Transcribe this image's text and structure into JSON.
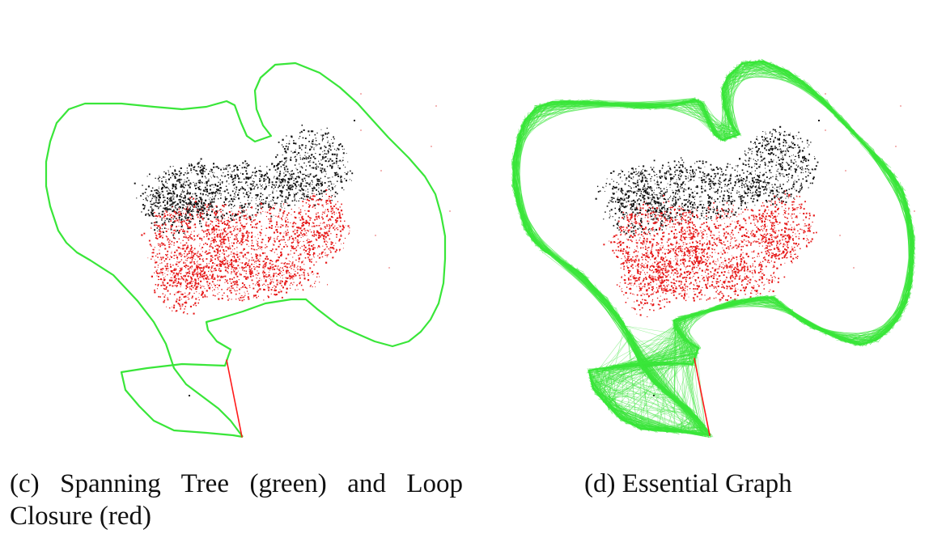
{
  "figure": {
    "colors": {
      "trajectory": "#39e639",
      "loop_closure": "#ff1a1a",
      "points_black": "#141414",
      "points_red": "#e61919",
      "points_faint": "#f4b6b6"
    },
    "panels": [
      {
        "id": "c",
        "caption": "(c) Spanning Tree (green) and Loop Closure (red)"
      },
      {
        "id": "d",
        "caption": "(d) Essential Graph"
      }
    ]
  }
}
